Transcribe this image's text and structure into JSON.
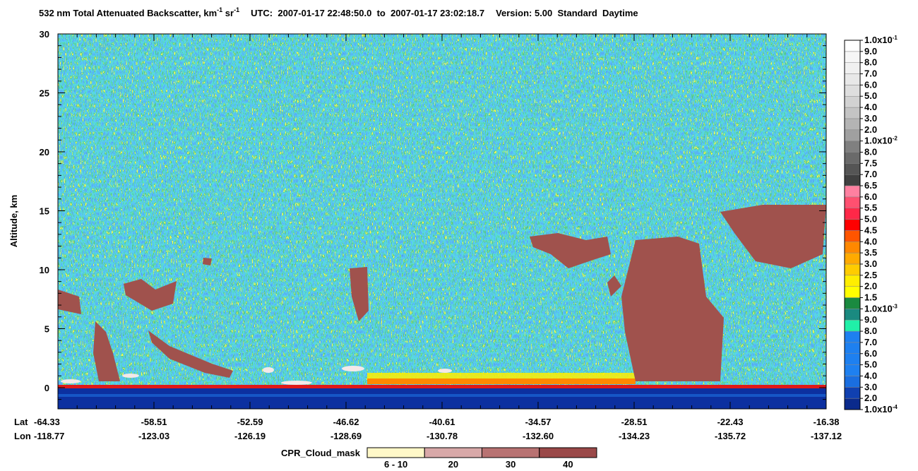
{
  "chart_data": {
    "type": "curtain",
    "title": {
      "parts": [
        "532 nm Total Attenuated Backscatter, km",
        "-1",
        " sr",
        "-1",
        "UTC:  2007-01-17 22:48:50.0  to  2007-01-17 23:02:18.7",
        "Version: 5.00  Standard  Daytime"
      ]
    },
    "ylabel": "Altitude, km",
    "ylim": [
      -1.8,
      30
    ],
    "yticks": [
      0,
      5,
      10,
      15,
      20,
      25,
      30
    ],
    "x_rows": [
      {
        "name": "Lat",
        "labels": [
          "-64.33",
          "-58.51",
          "-52.59",
          "-46.62",
          "-40.61",
          "-34.57",
          "-28.51",
          "-22.43",
          "-16.38"
        ]
      },
      {
        "name": "Lon",
        "labels": [
          "-118.77",
          "-123.03",
          "-126.19",
          "-128.69",
          "-130.78",
          "-132.60",
          "-134.23",
          "-135.72",
          "-137.12"
        ]
      }
    ],
    "colorbar": {
      "labels": [
        {
          "text": "1.0x10",
          "sup": "-4"
        },
        "2.0",
        "3.0",
        "4.0",
        "5.0",
        "6.0",
        "7.0",
        "8.0",
        "9.0",
        {
          "text": "1.0x10",
          "sup": "-3"
        },
        "1.5",
        "2.0",
        "2.5",
        "3.0",
        "3.5",
        "4.0",
        "4.5",
        "5.0",
        "5.5",
        "6.0",
        "6.5",
        "7.0",
        "7.5",
        "8.0",
        {
          "text": "1.0x10",
          "sup": "-2"
        },
        "2.0",
        "3.0",
        "4.0",
        "5.0",
        "6.0",
        "7.0",
        "8.0",
        "9.0",
        {
          "text": "1.0x10",
          "sup": "-1"
        }
      ],
      "colors": [
        "#0a2a8c",
        "#1040b0",
        "#1a6ee0",
        "#1e80f0",
        "#1e80f0",
        "#1e80f0",
        "#1e80f0",
        "#20f0a8",
        "#1a8a80",
        "#1a8a40",
        "#ffff00",
        "#ffee00",
        "#ffcc00",
        "#ffaa00",
        "#ff8800",
        "#ff5500",
        "#ff0000",
        "#ff2848",
        "#ff5070",
        "#ff80a0",
        "#404040",
        "#555555",
        "#6a6a6a",
        "#808080",
        "#a0a0a0",
        "#b4b4b4",
        "#c4c4c4",
        "#d2d2d2",
        "#dedede",
        "#e8e8e8",
        "#f0f0f0",
        "#f6f6f6",
        "#ffffff"
      ]
    },
    "cloud_mask": {
      "label": "CPR_Cloud_mask",
      "classes": [
        "6 - 10",
        "20",
        "30",
        "40"
      ],
      "colors": [
        "#fff8c8",
        "#d8a8a8",
        "#b87272",
        "#9a4848"
      ]
    }
  }
}
